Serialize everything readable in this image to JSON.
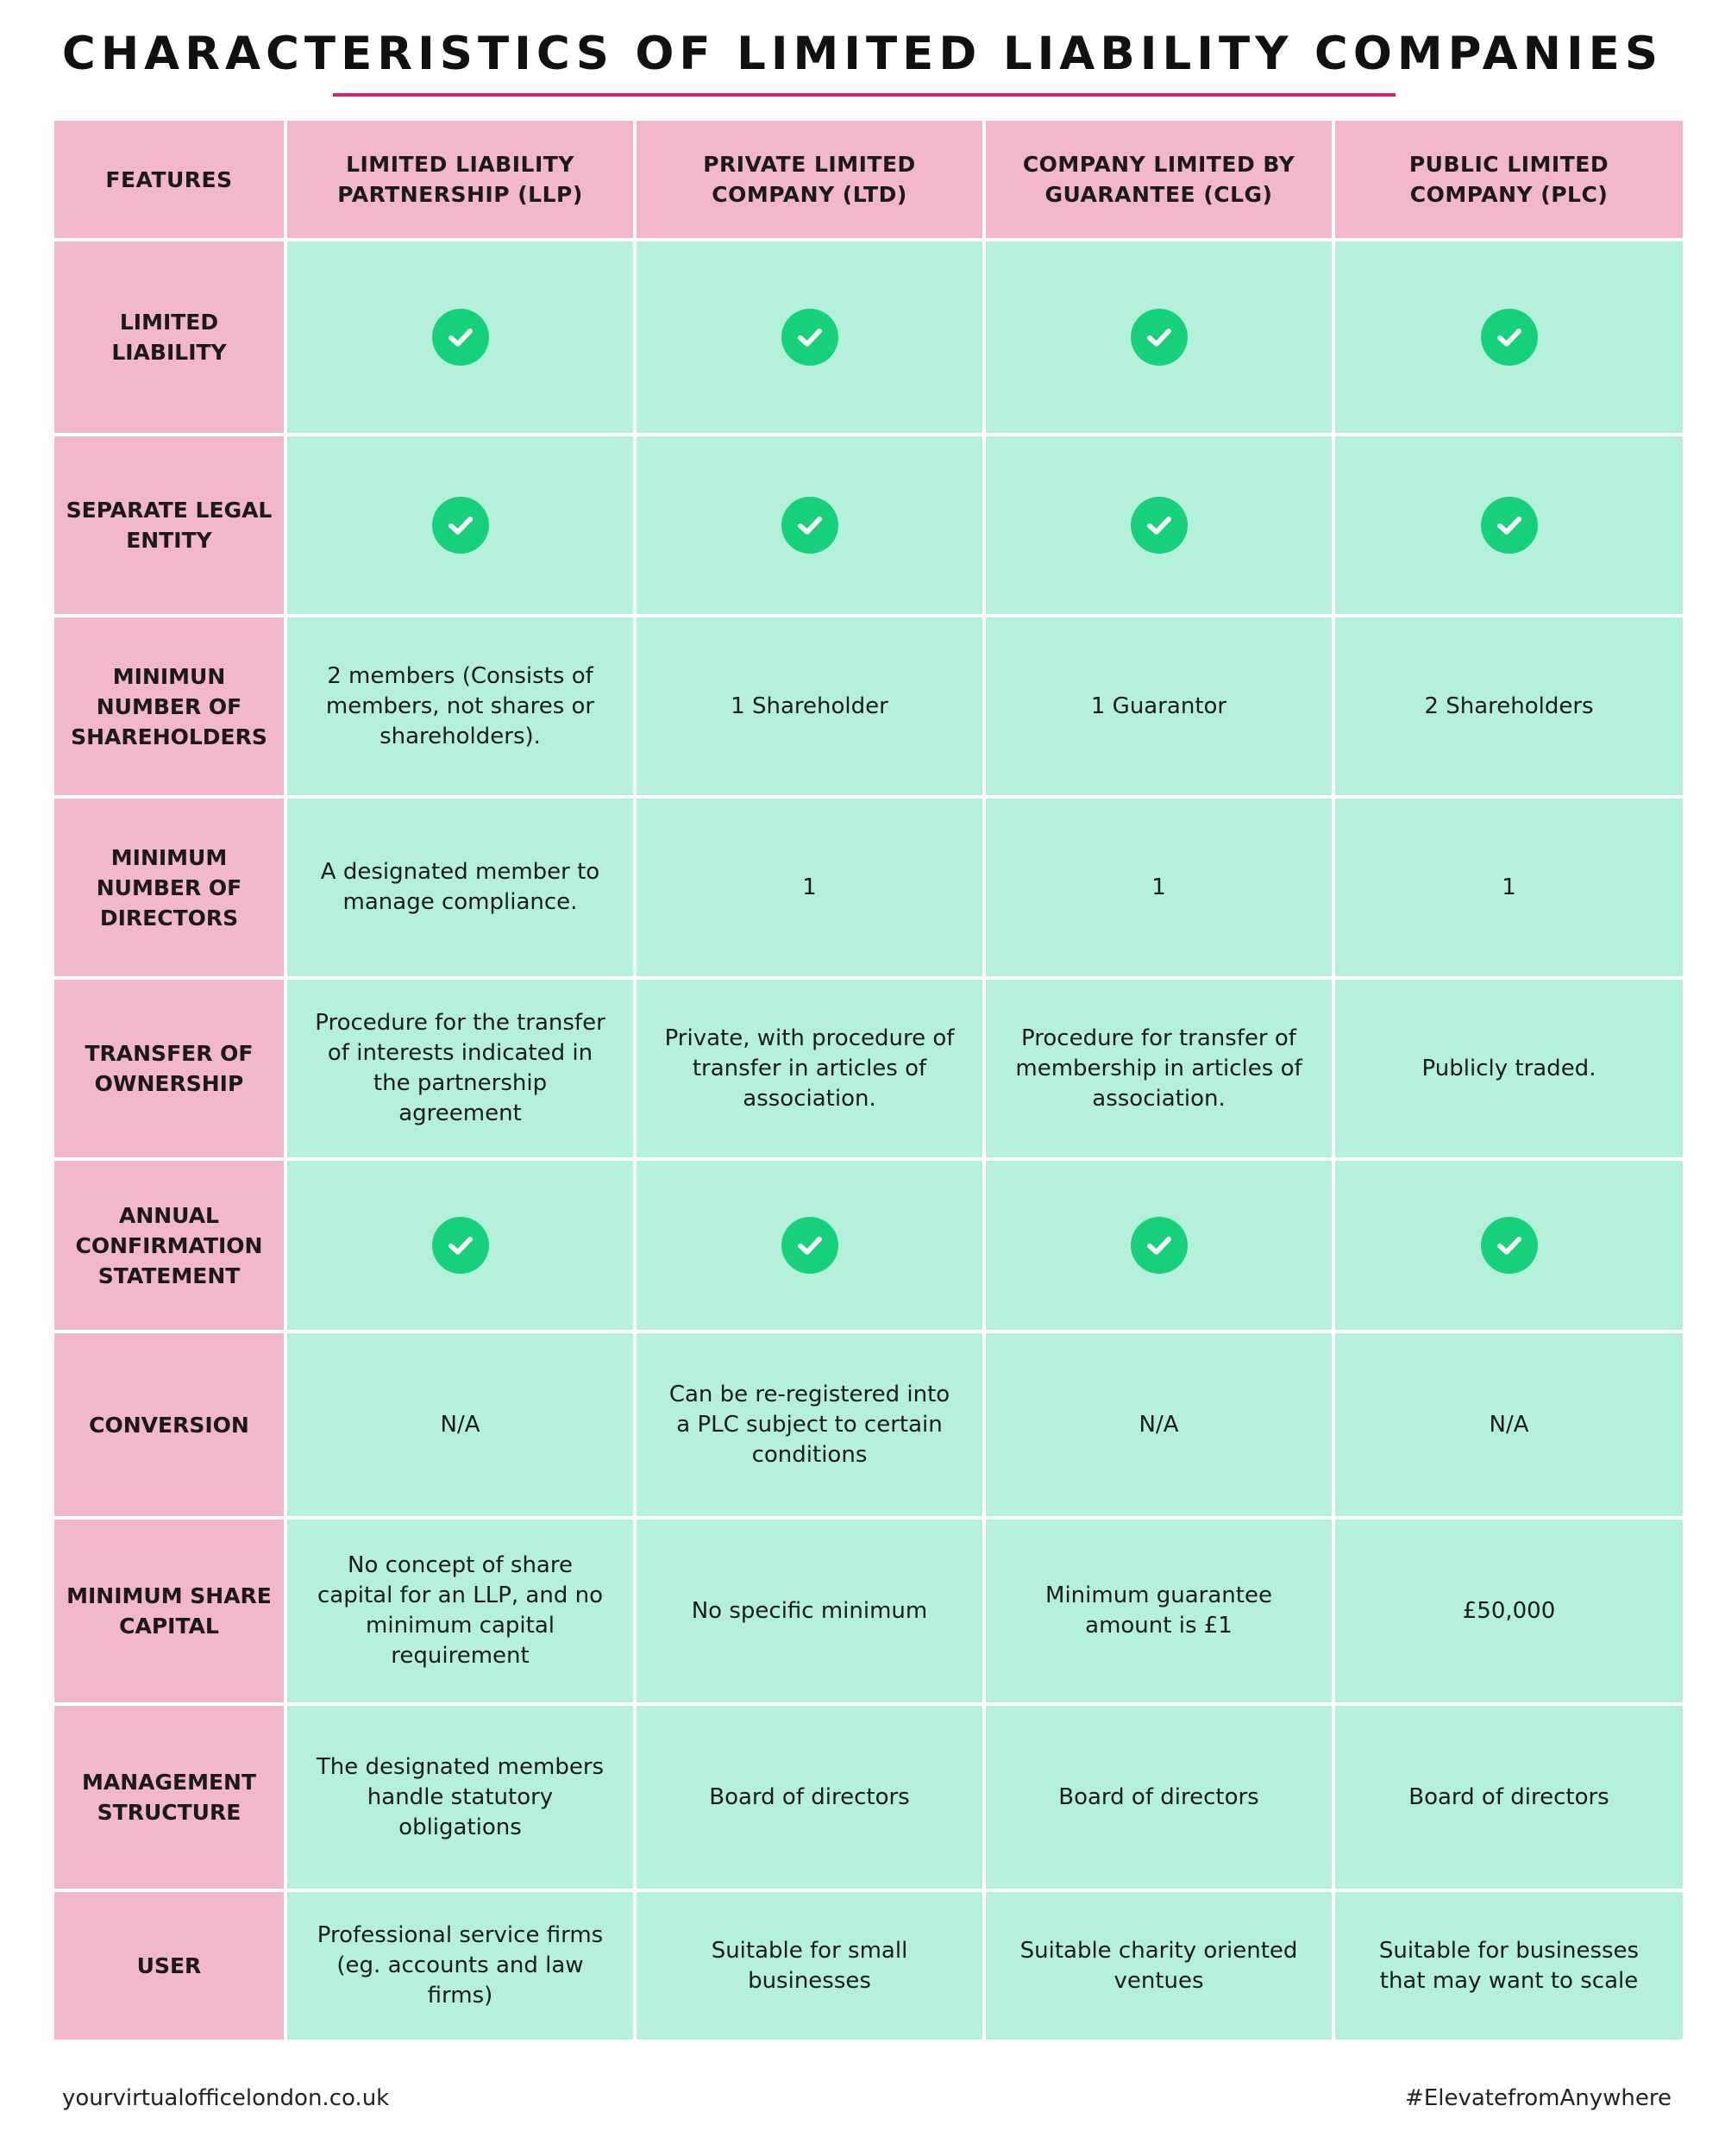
{
  "title": "CHARACTERISTICS OF LIMITED LIABILITY COMPANIES",
  "colors": {
    "accent": "#d6246a",
    "header_bg": "#f2b6cd",
    "cell_bg": "#b5f0da",
    "check": "#16d07a"
  },
  "table": {
    "headers": [
      "FEATURES",
      "LIMITED LIABILITY PARTNERSHIP (LLP)",
      "PRIVATE LIMITED COMPANY (LTD)",
      "COMPANY LIMITED BY GUARANTEE (CLG)",
      "PUBLIC LIMITED COMPANY (PLC)"
    ],
    "rows": [
      {
        "feature": "LIMITED LIABILITY",
        "llp": "",
        "ltd": "",
        "clg": "",
        "plc": "",
        "icon": "check-icon"
      },
      {
        "feature": "SEPARATE LEGAL ENTITY",
        "llp": "",
        "ltd": "",
        "clg": "",
        "plc": "",
        "icon": "check-icon"
      },
      {
        "feature": "MINIMUN NUMBER OF SHAREHOLDERS",
        "llp": "2 members  (Consists of members, not shares or shareholders).",
        "ltd": "1 Shareholder",
        "clg": "1 Guarantor",
        "plc": "2 Shareholders"
      },
      {
        "feature": "MINIMUM NUMBER OF DIRECTORS",
        "llp": "A designated member to manage compliance.",
        "ltd": "1",
        "clg": "1",
        "plc": "1"
      },
      {
        "feature": "TRANSFER OF OWNERSHIP",
        "llp": "Procedure for the transfer of interests indicated in the partnership agreement",
        "ltd": "Private, with procedure of transfer in articles of association.",
        "clg": "Procedure for transfer of membership in articles of association.",
        "plc": "Publicly traded."
      },
      {
        "feature": "ANNUAL CONFIRMATION STATEMENT",
        "llp": "",
        "ltd": "",
        "clg": "",
        "plc": "",
        "icon": "check-icon"
      },
      {
        "feature": "CONVERSION",
        "llp": "N/A",
        "ltd": "Can be re-registered into a PLC subject to certain conditions",
        "clg": "N/A",
        "plc": "N/A"
      },
      {
        "feature": "MINIMUM SHARE CAPITAL",
        "llp": "No concept of share capital for an LLP, and no minimum capital requirement",
        "ltd": "No specific minimum",
        "clg": "Minimum guarantee amount is £1",
        "plc": "£50,000"
      },
      {
        "feature": "MANAGEMENT STRUCTURE",
        "llp": "The designated members handle statutory obligations",
        "ltd": "Board of directors",
        "clg": "Board of directors",
        "plc": "Board of directors"
      },
      {
        "feature": "USER",
        "llp": "Professional service firms (eg. accounts and law firms)",
        "ltd": "Suitable for small businesses",
        "clg": "Suitable charity oriented ventues",
        "plc": "Suitable for businesses that may want to scale"
      }
    ]
  },
  "footer": {
    "website": "yourvirtualofficelondon.co.uk",
    "hashtag": "#ElevatefromAnywhere"
  }
}
